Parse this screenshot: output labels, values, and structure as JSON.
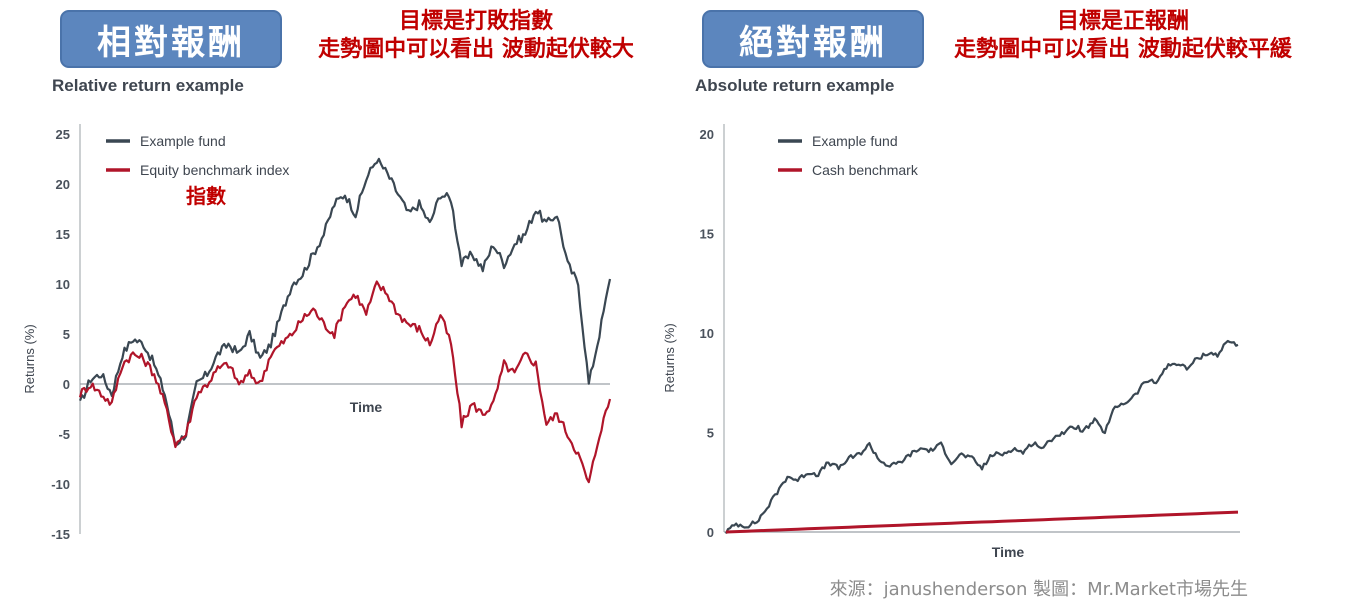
{
  "left_panel": {
    "badge": "相對報酬",
    "note_line1": "目標是打敗指數",
    "note_line2": "走勢圖中可以看出 波動起伏較大",
    "index_note": "指數"
  },
  "right_panel": {
    "badge": "絕對報酬",
    "note_line1": "目標是正報酬",
    "note_line2": "走勢圖中可以看出 波動起伏較平緩"
  },
  "source": "來源：janushenderson 製圖：Mr.Market市場先生",
  "colors": {
    "fund": "#3a4752",
    "benchmark": "#b0152a",
    "axis": "#9aa0a6"
  },
  "chart_data": [
    {
      "type": "line",
      "title": "Relative return example",
      "xlabel": "Time",
      "ylabel": "Returns (%)",
      "ylim": [
        -15,
        25
      ],
      "yticks": [
        "25",
        "20",
        "15",
        "10",
        "5",
        "0",
        "-5",
        "-10",
        "-15"
      ],
      "legend_position": "top-left",
      "x": [
        0,
        2,
        4,
        6,
        8,
        10,
        12,
        14,
        16,
        18,
        20,
        22,
        24,
        26,
        28,
        30,
        32,
        34,
        36,
        38,
        40,
        42,
        44,
        46,
        48,
        50,
        52,
        54,
        56,
        58,
        60,
        62,
        64,
        66,
        68,
        70,
        72,
        74,
        76,
        78,
        80,
        82,
        84,
        86,
        88,
        90,
        92,
        94,
        96,
        98,
        100
      ],
      "series": [
        {
          "name": "Example fund",
          "values": [
            -2,
            0.5,
            1,
            -1,
            3,
            4.5,
            4,
            2,
            -1,
            -6,
            -5,
            0,
            1,
            3,
            4,
            3,
            5,
            2.5,
            4,
            7,
            10,
            11,
            13,
            15,
            18,
            19,
            17,
            20.5,
            22.5,
            21,
            19,
            17,
            18,
            16,
            19,
            18.5,
            12,
            13,
            11.5,
            14,
            12,
            14,
            15,
            17.5,
            16,
            17,
            12,
            10,
            0,
            5,
            10.5
          ]
        },
        {
          "name": "Equity benchmark index",
          "values": [
            -1,
            0,
            -1,
            -2,
            2,
            3,
            2.5,
            1,
            -2,
            -6,
            -5,
            -1,
            0,
            1.5,
            2,
            0,
            1,
            0,
            3,
            4,
            5,
            6.5,
            7.5,
            6,
            5,
            8,
            9,
            7,
            10,
            9,
            7,
            6,
            5.5,
            4,
            7,
            4,
            -4,
            -2,
            -3,
            -2,
            2,
            1,
            3,
            2,
            -4,
            -3,
            -5,
            -7,
            -10,
            -5,
            -1.5
          ]
        }
      ]
    },
    {
      "type": "line",
      "title": "Absolute return example",
      "xlabel": "Time",
      "ylabel": "Returns (%)",
      "ylim": [
        0,
        20
      ],
      "yticks": [
        "20",
        "15",
        "10",
        "5",
        "0"
      ],
      "legend_position": "top-left",
      "x": [
        0,
        2,
        4,
        6,
        8,
        10,
        12,
        14,
        16,
        18,
        20,
        22,
        24,
        26,
        28,
        30,
        32,
        34,
        36,
        38,
        40,
        42,
        44,
        46,
        48,
        50,
        52,
        54,
        56,
        58,
        60,
        62,
        64,
        66,
        68,
        70,
        72,
        74,
        76,
        78,
        80,
        82,
        84,
        86,
        88,
        90,
        92,
        94,
        96,
        98,
        100
      ],
      "series": [
        {
          "name": "Example fund",
          "values": [
            0,
            0.4,
            0.3,
            0.5,
            1.2,
            2,
            2.8,
            2.6,
            3,
            2.9,
            3.5,
            3.2,
            3.7,
            3.9,
            4.4,
            3.6,
            3.3,
            3.5,
            3.9,
            4.2,
            4.1,
            4.4,
            3.5,
            3.9,
            3.7,
            3.2,
            3.9,
            3.9,
            4.2,
            4.0,
            4.5,
            4.2,
            4.8,
            5,
            5.3,
            5.1,
            5.6,
            5,
            6.3,
            6.5,
            6.9,
            7.6,
            7.5,
            8.3,
            8.5,
            8.2,
            8.7,
            9.0,
            8.9,
            9.6,
            9.4
          ]
        },
        {
          "name": "Cash benchmark",
          "values": [
            0,
            0.02,
            0.04,
            0.06,
            0.08,
            0.1,
            0.12,
            0.14,
            0.16,
            0.18,
            0.2,
            0.22,
            0.24,
            0.26,
            0.28,
            0.3,
            0.32,
            0.34,
            0.36,
            0.38,
            0.4,
            0.42,
            0.44,
            0.46,
            0.48,
            0.5,
            0.52,
            0.54,
            0.56,
            0.58,
            0.6,
            0.62,
            0.64,
            0.66,
            0.68,
            0.7,
            0.72,
            0.74,
            0.76,
            0.78,
            0.8,
            0.82,
            0.84,
            0.86,
            0.88,
            0.9,
            0.92,
            0.94,
            0.96,
            0.98,
            1.0
          ]
        }
      ]
    }
  ]
}
